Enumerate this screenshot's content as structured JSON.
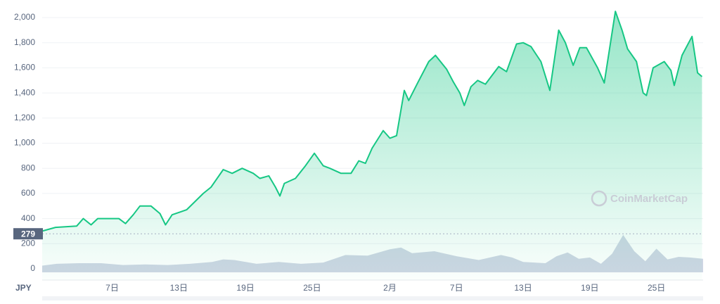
{
  "chart_data": {
    "type": "line",
    "currency": "JPY",
    "watermark": "CoinMarketCap",
    "current_value": 279,
    "xlim": [
      0.7,
      60.2
    ],
    "xticks": [
      {
        "value": 7,
        "label": "7日"
      },
      {
        "value": 13,
        "label": "13日"
      },
      {
        "value": 19,
        "label": "19日"
      },
      {
        "value": 25,
        "label": "25日"
      },
      {
        "value": 32,
        "label": "2月"
      },
      {
        "value": 38,
        "label": "7日"
      },
      {
        "value": 44,
        "label": "13日"
      },
      {
        "value": 50,
        "label": "19日"
      },
      {
        "value": 56,
        "label": "25日"
      }
    ],
    "ylim": [
      0,
      2000
    ],
    "yticks": [
      0,
      200,
      400,
      600,
      800,
      {
        "value": 1000,
        "label": "1,000"
      },
      {
        "value": 1200,
        "label": "1,200"
      },
      {
        "value": 1400,
        "label": "1,400"
      },
      {
        "value": 1600,
        "label": "1,600"
      },
      {
        "value": 1800,
        "label": "1,800"
      },
      {
        "value": 2000,
        "label": "2,000"
      }
    ],
    "grid": true,
    "series": [
      {
        "type": "line",
        "color": "#16c784",
        "x": [
          0.7,
          1.9,
          3.8,
          4.4,
          5.1,
          5.7,
          7.6,
          8.2,
          8.9,
          9.5,
          10.5,
          11.3,
          11.8,
          12.4,
          13.7,
          15.2,
          15.9,
          17.0,
          17.8,
          18.7,
          19.7,
          20.3,
          21.1,
          21.7,
          22.1,
          22.5,
          23.5,
          24.4,
          25.2,
          26.0,
          26.6,
          27.6,
          28.5,
          29.2,
          29.8,
          30.4,
          31.4,
          32.0,
          32.6,
          33.3,
          33.7,
          34.5,
          35.5,
          36.1,
          37.1,
          37.7,
          38.3,
          38.7,
          39.3,
          39.9,
          40.6,
          41.2,
          41.8,
          42.5,
          43.4,
          44.0,
          44.7,
          45.6,
          46.4,
          47.2,
          47.8,
          48.5,
          49.1,
          49.7,
          50.7,
          51.3,
          52.3,
          52.9,
          53.4,
          54.2,
          54.8,
          55.1,
          55.7,
          56.7,
          57.3,
          57.6,
          58.3,
          59.2,
          59.7,
          60.1
        ],
        "values": [
          300,
          330,
          340,
          400,
          350,
          400,
          400,
          360,
          430,
          500,
          500,
          440,
          350,
          430,
          470,
          600,
          650,
          790,
          760,
          800,
          760,
          720,
          740,
          650,
          580,
          680,
          720,
          820,
          920,
          820,
          800,
          760,
          760,
          860,
          840,
          960,
          1100,
          1040,
          1060,
          1420,
          1340,
          1480,
          1650,
          1700,
          1590,
          1490,
          1400,
          1300,
          1450,
          1500,
          1470,
          1540,
          1610,
          1570,
          1790,
          1800,
          1770,
          1650,
          1420,
          1900,
          1800,
          1620,
          1760,
          1760,
          1600,
          1480,
          2050,
          1900,
          1750,
          1650,
          1400,
          1380,
          1600,
          1650,
          1580,
          1460,
          1700,
          1850,
          1560,
          1530
        ]
      },
      {
        "type": "area",
        "color": "#cfd6e4",
        "x": [
          0.7,
          2,
          4,
          6,
          8,
          10,
          12,
          14,
          16,
          17,
          18,
          20,
          22,
          24,
          26,
          28,
          30,
          31,
          32,
          33,
          34,
          36,
          38,
          40,
          42,
          43,
          44,
          46,
          47,
          48,
          49,
          50,
          51,
          52,
          53,
          54,
          55,
          56,
          57,
          58,
          59,
          60.2
        ],
        "values": [
          25,
          40,
          45,
          45,
          30,
          35,
          30,
          40,
          55,
          75,
          70,
          40,
          55,
          40,
          50,
          110,
          105,
          130,
          155,
          170,
          125,
          140,
          100,
          70,
          110,
          90,
          55,
          45,
          100,
          130,
          80,
          90,
          40,
          120,
          270,
          140,
          60,
          160,
          75,
          95,
          90,
          80
        ]
      }
    ]
  }
}
